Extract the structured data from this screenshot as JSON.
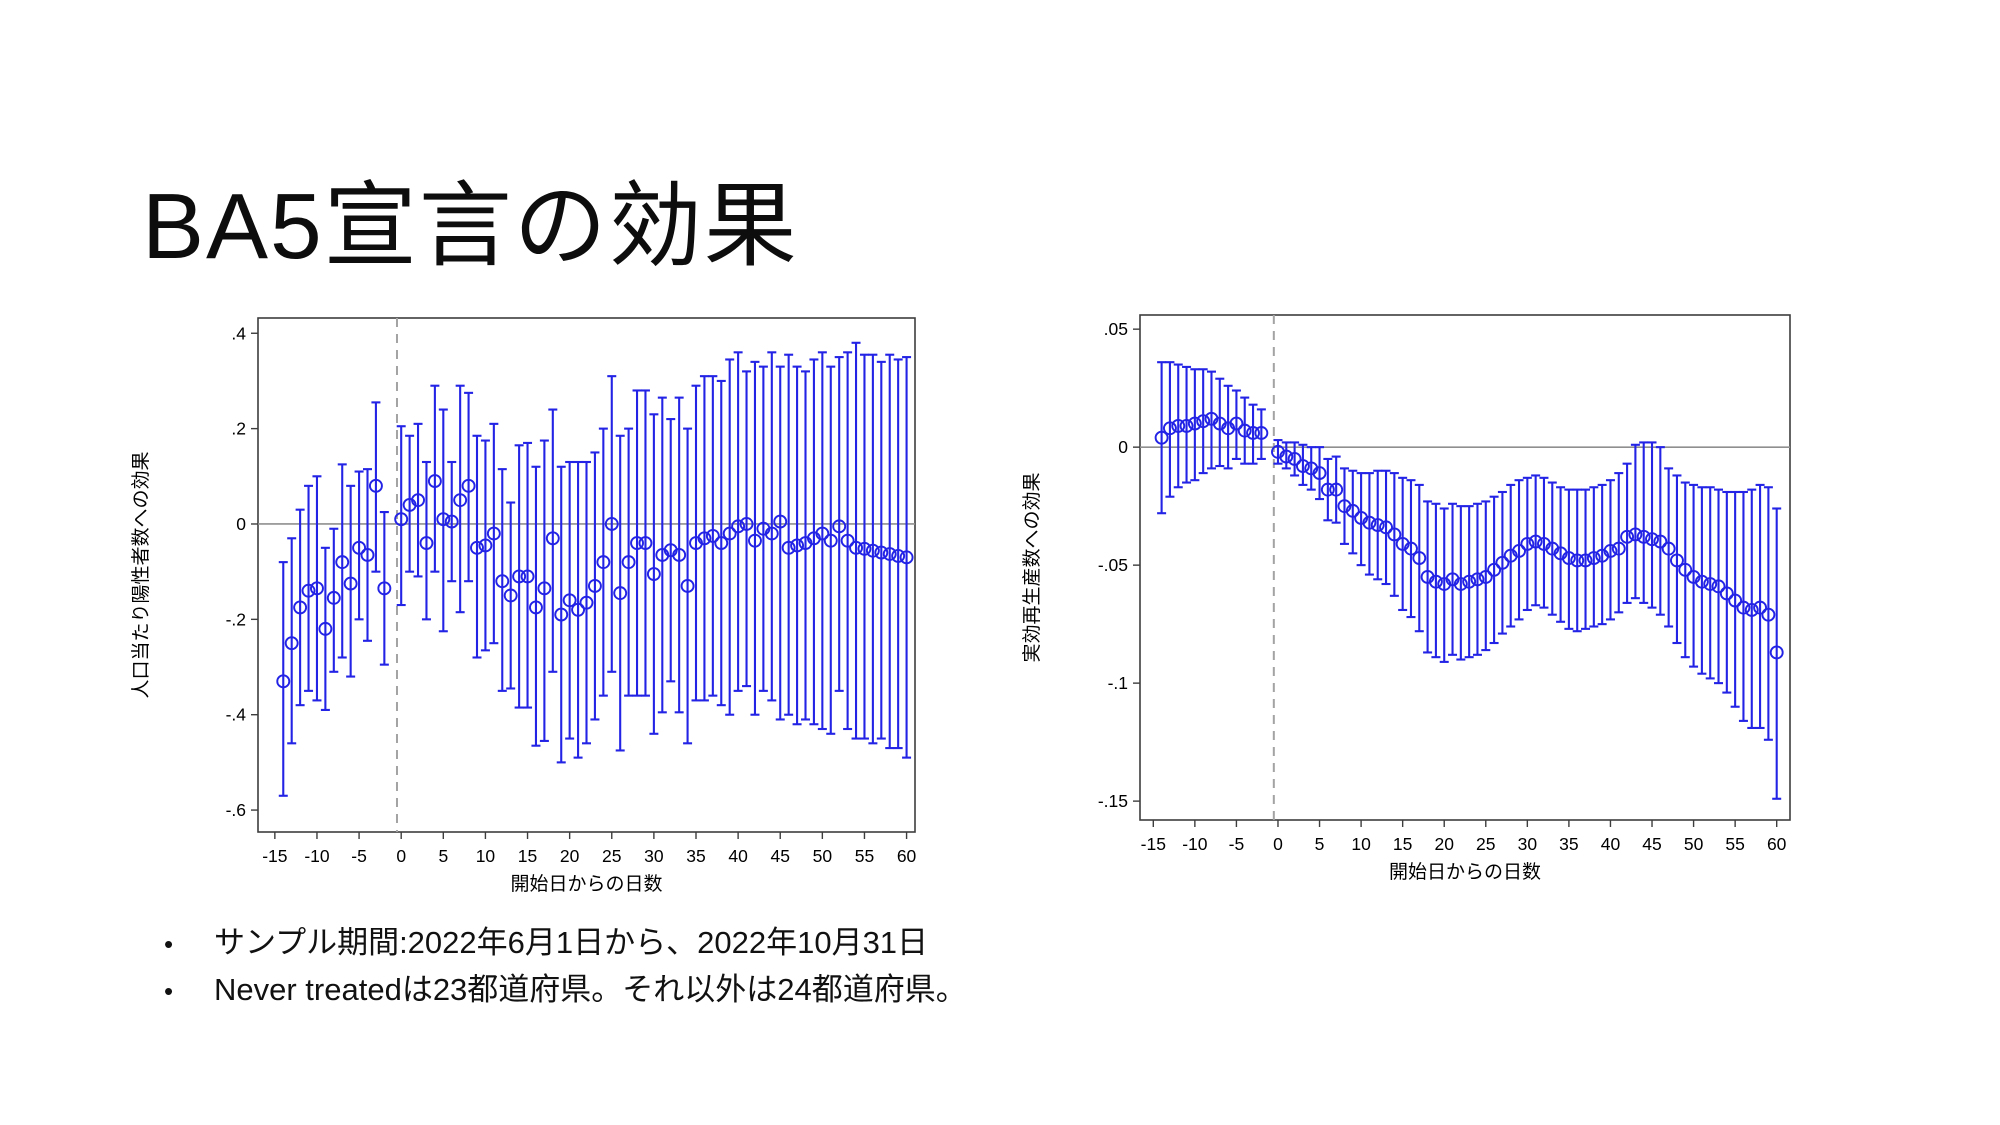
{
  "slide": {
    "title": "BA5宣言の効果",
    "bullets": [
      "サンプル期間:2022年6月1日から、2022年10月31日",
      "Never treatedは23都道府県。それ以外は24都道府県。"
    ],
    "bullet_glyph": "•"
  },
  "colors": {
    "marker": "#2323e6",
    "frame": "#3d3d3d",
    "zero_line": "#8f8f8f",
    "event_line": "#a3a3a3",
    "text": "#000000",
    "background": "#ffffff"
  },
  "chart_data": [
    {
      "type": "scatter",
      "title": "",
      "ylabel": "人口当たり陽性者数への効果",
      "xlabel": "開始日からの日数",
      "legend": "none",
      "grid": false,
      "xlim": [
        -17,
        61
      ],
      "ylim": [
        -0.646,
        0.432
      ],
      "xticks": [
        -15,
        -10,
        -5,
        0,
        5,
        10,
        15,
        20,
        25,
        30,
        35,
        40,
        45,
        50,
        55,
        60
      ],
      "ytick_values": [
        0.4,
        0.2,
        0,
        -0.2,
        -0.4,
        -0.6
      ],
      "ytick_labels": [
        ".4",
        ".2",
        "0",
        "-.2",
        "-.4",
        "-.6"
      ],
      "reference_line_y": 0,
      "event_line_x": -0.5,
      "series": [
        {
          "name": "estimate-with-95ci",
          "x": [
            -14,
            -13,
            -12,
            -11,
            -10,
            -9,
            -8,
            -7,
            -6,
            -5,
            -4,
            -3,
            -2,
            0,
            1,
            2,
            3,
            4,
            5,
            6,
            7,
            8,
            9,
            10,
            11,
            12,
            13,
            14,
            15,
            16,
            17,
            18,
            19,
            20,
            21,
            22,
            23,
            24,
            25,
            26,
            27,
            28,
            29,
            30,
            31,
            32,
            33,
            34,
            35,
            36,
            37,
            38,
            39,
            40,
            41,
            42,
            43,
            44,
            45,
            46,
            47,
            48,
            49,
            50,
            51,
            52,
            53,
            54,
            55,
            56,
            57,
            58,
            59,
            60
          ],
          "y": [
            -0.33,
            -0.25,
            -0.175,
            -0.14,
            -0.135,
            -0.22,
            -0.155,
            -0.08,
            -0.125,
            -0.05,
            -0.065,
            0.08,
            -0.135,
            0.01,
            0.04,
            0.05,
            -0.04,
            0.09,
            0.01,
            0.005,
            0.05,
            0.08,
            -0.05,
            -0.045,
            -0.02,
            -0.12,
            -0.15,
            -0.11,
            -0.11,
            -0.175,
            -0.135,
            -0.03,
            -0.19,
            -0.16,
            -0.18,
            -0.165,
            -0.13,
            -0.08,
            0.0,
            -0.145,
            -0.08,
            -0.04,
            -0.04,
            -0.105,
            -0.065,
            -0.055,
            -0.065,
            -0.13,
            -0.04,
            -0.03,
            -0.025,
            -0.04,
            -0.02,
            -0.005,
            0.0,
            -0.035,
            -0.01,
            -0.02,
            0.005,
            -0.05,
            -0.045,
            -0.04,
            -0.03,
            -0.02,
            -0.035,
            -0.005,
            -0.035,
            -0.05,
            -0.052,
            -0.056,
            -0.06,
            -0.063,
            -0.067,
            -0.07
          ],
          "ci_low": [
            -0.57,
            -0.46,
            -0.38,
            -0.35,
            -0.37,
            -0.39,
            -0.31,
            -0.28,
            -0.32,
            -0.2,
            -0.245,
            -0.1,
            -0.295,
            -0.17,
            -0.1,
            -0.11,
            -0.2,
            -0.1,
            -0.225,
            -0.12,
            -0.185,
            -0.12,
            -0.28,
            -0.265,
            -0.25,
            -0.35,
            -0.345,
            -0.385,
            -0.385,
            -0.465,
            -0.455,
            -0.31,
            -0.5,
            -0.45,
            -0.49,
            -0.46,
            -0.41,
            -0.36,
            -0.31,
            -0.475,
            -0.36,
            -0.36,
            -0.36,
            -0.44,
            -0.395,
            -0.33,
            -0.395,
            -0.46,
            -0.37,
            -0.37,
            -0.36,
            -0.38,
            -0.4,
            -0.35,
            -0.34,
            -0.4,
            -0.35,
            -0.37,
            -0.41,
            -0.4,
            -0.42,
            -0.41,
            -0.42,
            -0.43,
            -0.44,
            -0.35,
            -0.43,
            -0.45,
            -0.45,
            -0.46,
            -0.45,
            -0.47,
            -0.47,
            -0.49
          ],
          "ci_high": [
            -0.08,
            -0.03,
            0.03,
            0.08,
            0.1,
            -0.05,
            -0.01,
            0.125,
            0.08,
            0.11,
            0.115,
            0.255,
            0.025,
            0.205,
            0.185,
            0.21,
            0.13,
            0.29,
            0.24,
            0.13,
            0.29,
            0.275,
            0.185,
            0.175,
            0.21,
            0.115,
            0.045,
            0.165,
            0.17,
            0.12,
            0.175,
            0.24,
            0.12,
            0.13,
            0.13,
            0.13,
            0.15,
            0.2,
            0.31,
            0.185,
            0.2,
            0.28,
            0.28,
            0.23,
            0.265,
            0.22,
            0.265,
            0.2,
            0.29,
            0.31,
            0.31,
            0.3,
            0.345,
            0.36,
            0.32,
            0.34,
            0.33,
            0.36,
            0.33,
            0.355,
            0.33,
            0.32,
            0.345,
            0.36,
            0.33,
            0.35,
            0.36,
            0.38,
            0.355,
            0.355,
            0.34,
            0.355,
            0.345,
            0.35
          ]
        }
      ]
    },
    {
      "type": "scatter",
      "title": "",
      "ylabel": "実効再生産数への効果",
      "xlabel": "開始日からの日数",
      "legend": "none",
      "grid": false,
      "xlim": [
        -16.6,
        61.6
      ],
      "ylim": [
        -0.158,
        0.056
      ],
      "xticks": [
        -15,
        -10,
        -5,
        0,
        5,
        10,
        15,
        20,
        25,
        30,
        35,
        40,
        45,
        50,
        55,
        60
      ],
      "ytick_values": [
        0.05,
        0,
        -0.05,
        -0.1,
        -0.15
      ],
      "ytick_labels": [
        ".05",
        "0",
        "-.05",
        "-.1",
        "-.15"
      ],
      "reference_line_y": 0,
      "event_line_x": -0.5,
      "series": [
        {
          "name": "estimate-with-95ci",
          "x": [
            -14,
            -13,
            -12,
            -11,
            -10,
            -9,
            -8,
            -7,
            -6,
            -5,
            -4,
            -3,
            -2,
            0,
            1,
            2,
            3,
            4,
            5,
            6,
            7,
            8,
            9,
            10,
            11,
            12,
            13,
            14,
            15,
            16,
            17,
            18,
            19,
            20,
            21,
            22,
            23,
            24,
            25,
            26,
            27,
            28,
            29,
            30,
            31,
            32,
            33,
            34,
            35,
            36,
            37,
            38,
            39,
            40,
            41,
            42,
            43,
            44,
            45,
            46,
            47,
            48,
            49,
            50,
            51,
            52,
            53,
            54,
            55,
            56,
            57,
            58,
            59,
            60
          ],
          "y": [
            0.004,
            0.008,
            0.009,
            0.009,
            0.01,
            0.011,
            0.012,
            0.01,
            0.008,
            0.01,
            0.007,
            0.006,
            0.006,
            -0.002,
            -0.004,
            -0.005,
            -0.008,
            -0.009,
            -0.011,
            -0.018,
            -0.018,
            -0.025,
            -0.027,
            -0.03,
            -0.032,
            -0.033,
            -0.034,
            -0.037,
            -0.041,
            -0.043,
            -0.047,
            -0.055,
            -0.057,
            -0.058,
            -0.056,
            -0.058,
            -0.057,
            -0.056,
            -0.055,
            -0.052,
            -0.049,
            -0.046,
            -0.044,
            -0.041,
            -0.04,
            -0.041,
            -0.043,
            -0.045,
            -0.047,
            -0.048,
            -0.048,
            -0.047,
            -0.046,
            -0.044,
            -0.043,
            -0.038,
            -0.037,
            -0.038,
            -0.039,
            -0.04,
            -0.043,
            -0.048,
            -0.052,
            -0.055,
            -0.057,
            -0.058,
            -0.059,
            -0.062,
            -0.065,
            -0.068,
            -0.069,
            -0.068,
            -0.071,
            -0.087
          ],
          "ci_low": [
            -0.028,
            -0.021,
            -0.017,
            -0.015,
            -0.014,
            -0.011,
            -0.009,
            -0.008,
            -0.009,
            -0.005,
            -0.007,
            -0.007,
            -0.005,
            -0.007,
            -0.009,
            -0.012,
            -0.016,
            -0.018,
            -0.022,
            -0.031,
            -0.032,
            -0.041,
            -0.045,
            -0.05,
            -0.054,
            -0.056,
            -0.058,
            -0.063,
            -0.069,
            -0.072,
            -0.078,
            -0.087,
            -0.089,
            -0.091,
            -0.088,
            -0.09,
            -0.089,
            -0.088,
            -0.086,
            -0.083,
            -0.079,
            -0.076,
            -0.073,
            -0.069,
            -0.067,
            -0.068,
            -0.071,
            -0.074,
            -0.077,
            -0.078,
            -0.077,
            -0.076,
            -0.075,
            -0.073,
            -0.07,
            -0.066,
            -0.064,
            -0.066,
            -0.068,
            -0.071,
            -0.076,
            -0.083,
            -0.089,
            -0.093,
            -0.096,
            -0.098,
            -0.1,
            -0.104,
            -0.11,
            -0.116,
            -0.119,
            -0.119,
            -0.124,
            -0.149
          ],
          "ci_high": [
            0.036,
            0.036,
            0.035,
            0.034,
            0.033,
            0.033,
            0.032,
            0.029,
            0.026,
            0.024,
            0.021,
            0.018,
            0.016,
            0.003,
            0.002,
            0.002,
            0.001,
            0.0,
            0.0,
            -0.005,
            -0.004,
            -0.009,
            -0.01,
            -0.011,
            -0.011,
            -0.01,
            -0.01,
            -0.011,
            -0.013,
            -0.014,
            -0.016,
            -0.023,
            -0.024,
            -0.026,
            -0.024,
            -0.025,
            -0.025,
            -0.024,
            -0.023,
            -0.021,
            -0.019,
            -0.016,
            -0.014,
            -0.013,
            -0.012,
            -0.013,
            -0.015,
            -0.017,
            -0.018,
            -0.018,
            -0.018,
            -0.017,
            -0.016,
            -0.014,
            -0.011,
            -0.007,
            0.001,
            0.002,
            0.002,
            0.0,
            -0.009,
            -0.012,
            -0.015,
            -0.016,
            -0.017,
            -0.017,
            -0.018,
            -0.019,
            -0.019,
            -0.019,
            -0.018,
            -0.016,
            -0.017,
            -0.026
          ]
        }
      ]
    }
  ]
}
